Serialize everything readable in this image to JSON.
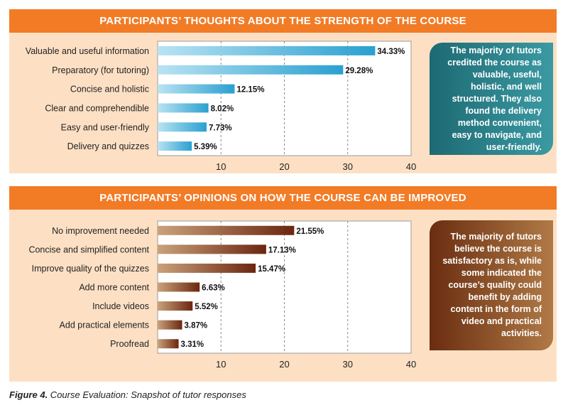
{
  "chart_data": [
    {
      "type": "bar",
      "orientation": "horizontal",
      "title": "PARTICIPANTS’ THOUGHTS ABOUT THE STRENGTH OF THE COURSE",
      "categories": [
        "Valuable and useful information",
        "Preparatory (for tutoring)",
        "Concise and holistic",
        "Clear and comprehendible",
        "Easy and user-friendly",
        "Delivery and quizzes"
      ],
      "values": [
        34.33,
        29.28,
        12.15,
        8.02,
        7.73,
        5.39
      ],
      "value_labels": [
        "34.33%",
        "29.28%",
        "12.15%",
        "8.02%",
        "7.73%",
        "5.39%"
      ],
      "xlim": [
        0,
        40
      ],
      "xticks": [
        "10",
        "20",
        "30",
        "40"
      ],
      "grid": "vertical dashed",
      "colors": [
        "#b9e3f3",
        "#2aa0d0"
      ]
    },
    {
      "type": "bar",
      "orientation": "horizontal",
      "title": "PARTICIPANTS’ OPINIONS ON HOW THE COURSE CAN BE IMPROVED",
      "categories": [
        "No improvement needed",
        "Concise and simplified content",
        "Improve quality of the quizzes",
        "Add more content",
        "Include videos",
        "Add practical elements",
        "Proofread"
      ],
      "values": [
        21.55,
        17.13,
        15.47,
        6.63,
        5.52,
        3.87,
        3.31
      ],
      "value_labels": [
        "21.55%",
        "17.13%",
        "15.47%",
        "6.63%",
        "5.52%",
        "3.87%",
        "3.31%"
      ],
      "xlim": [
        0,
        40
      ],
      "xticks": [
        "10",
        "20",
        "30",
        "40"
      ],
      "grid": "vertical dashed",
      "colors": [
        "#c9a27a",
        "#6b2610"
      ]
    }
  ],
  "callouts": {
    "top": "The majority of tutors credited the course as valuable, useful, holistic, and well structured. They also found the delivery method convenient, easy to navigate, and user-friendly.",
    "bottom": "The majority of tutors believe the course is satisfactory as is, while some indicated the course’s quality could benefit by adding content in the form of video and practical activities."
  },
  "caption": {
    "figure": "Figure 4.",
    "text": " Course Evaluation: Snapshot of tutor responses"
  }
}
